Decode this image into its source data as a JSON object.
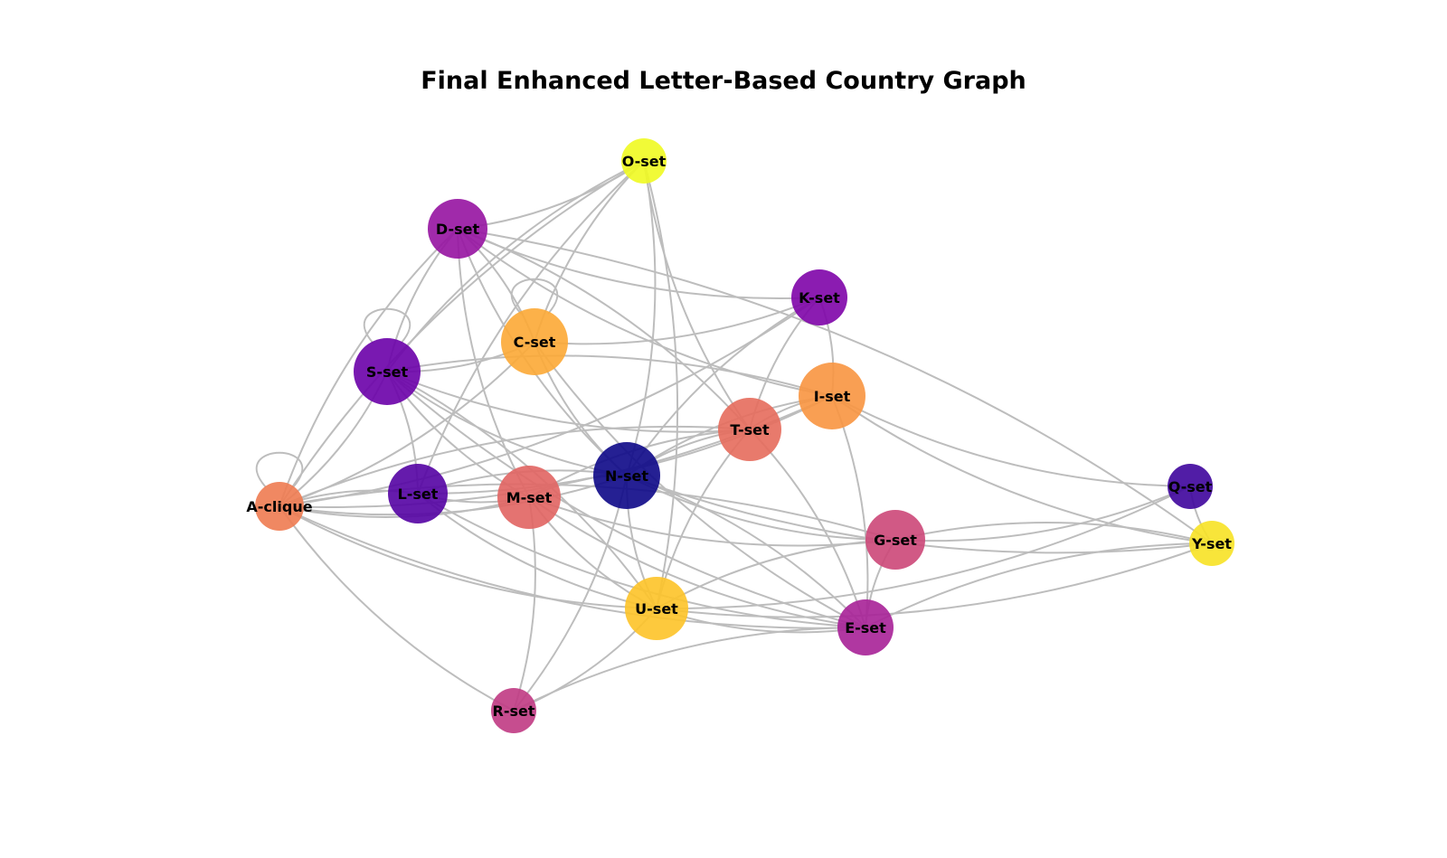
{
  "title": "Final Enhanced Letter-Based Country Graph",
  "nodes": [
    {
      "id": "A",
      "label": "A-clique",
      "color": "#ee7b51"
    },
    {
      "id": "C",
      "label": "C-set",
      "color": "#fca835"
    },
    {
      "id": "D",
      "label": "D-set",
      "color": "#9613a1"
    },
    {
      "id": "E",
      "label": "E-set",
      "color": "#a72197"
    },
    {
      "id": "G",
      "label": "G-set",
      "color": "#cc4778"
    },
    {
      "id": "I",
      "label": "I-set",
      "color": "#f89540"
    },
    {
      "id": "K",
      "label": "K-set",
      "color": "#7e03a8"
    },
    {
      "id": "L",
      "label": "L-set",
      "color": "#5402a3"
    },
    {
      "id": "M",
      "label": "M-set",
      "color": "#e16462"
    },
    {
      "id": "N",
      "label": "N-set",
      "color": "#0d0887"
    },
    {
      "id": "O",
      "label": "O-set",
      "color": "#f0f921"
    },
    {
      "id": "Q",
      "label": "Q-set",
      "color": "#3e049c"
    },
    {
      "id": "R",
      "label": "R-set",
      "color": "#c03a83"
    },
    {
      "id": "S",
      "label": "S-set",
      "color": "#6a00a8"
    },
    {
      "id": "T",
      "label": "T-set",
      "color": "#e66c5c"
    },
    {
      "id": "U",
      "label": "U-set",
      "color": "#fdc328"
    },
    {
      "id": "Y",
      "label": "Y-set",
      "color": "#f7e225"
    }
  ],
  "edges": [
    [
      "A",
      "A"
    ],
    [
      "C",
      "C"
    ],
    [
      "S",
      "S"
    ],
    [
      "A",
      "D"
    ],
    [
      "A",
      "S"
    ],
    [
      "A",
      "C"
    ],
    [
      "A",
      "L"
    ],
    [
      "A",
      "M"
    ],
    [
      "A",
      "N"
    ],
    [
      "A",
      "T"
    ],
    [
      "A",
      "I"
    ],
    [
      "A",
      "K"
    ],
    [
      "A",
      "O"
    ],
    [
      "A",
      "R"
    ],
    [
      "A",
      "U"
    ],
    [
      "A",
      "G"
    ],
    [
      "A",
      "E"
    ],
    [
      "D",
      "O"
    ],
    [
      "D",
      "C"
    ],
    [
      "D",
      "S"
    ],
    [
      "D",
      "N"
    ],
    [
      "D",
      "T"
    ],
    [
      "D",
      "I"
    ],
    [
      "D",
      "K"
    ],
    [
      "D",
      "Y"
    ],
    [
      "D",
      "M"
    ],
    [
      "O",
      "C"
    ],
    [
      "O",
      "N"
    ],
    [
      "O",
      "T"
    ],
    [
      "O",
      "S"
    ],
    [
      "O",
      "U"
    ],
    [
      "O",
      "L"
    ],
    [
      "C",
      "N"
    ],
    [
      "C",
      "S"
    ],
    [
      "C",
      "K"
    ],
    [
      "C",
      "E"
    ],
    [
      "S",
      "L"
    ],
    [
      "S",
      "M"
    ],
    [
      "S",
      "N"
    ],
    [
      "S",
      "U"
    ],
    [
      "S",
      "E"
    ],
    [
      "S",
      "T"
    ],
    [
      "S",
      "I"
    ],
    [
      "K",
      "N"
    ],
    [
      "K",
      "T"
    ],
    [
      "K",
      "I"
    ],
    [
      "I",
      "N"
    ],
    [
      "I",
      "T"
    ],
    [
      "I",
      "E"
    ],
    [
      "I",
      "Y"
    ],
    [
      "I",
      "Q"
    ],
    [
      "I",
      "L"
    ],
    [
      "T",
      "N"
    ],
    [
      "T",
      "U"
    ],
    [
      "T",
      "E"
    ],
    [
      "T",
      "M"
    ],
    [
      "L",
      "M"
    ],
    [
      "L",
      "N"
    ],
    [
      "L",
      "U"
    ],
    [
      "L",
      "E"
    ],
    [
      "M",
      "N"
    ],
    [
      "M",
      "U"
    ],
    [
      "M",
      "E"
    ],
    [
      "M",
      "R"
    ],
    [
      "M",
      "G"
    ],
    [
      "N",
      "U"
    ],
    [
      "N",
      "E"
    ],
    [
      "N",
      "G"
    ],
    [
      "N",
      "Y"
    ],
    [
      "N",
      "R"
    ],
    [
      "G",
      "U"
    ],
    [
      "G",
      "E"
    ],
    [
      "G",
      "Y"
    ],
    [
      "G",
      "Q"
    ],
    [
      "U",
      "E"
    ],
    [
      "U",
      "R"
    ],
    [
      "U",
      "Y"
    ],
    [
      "U",
      "Q"
    ],
    [
      "E",
      "Y"
    ],
    [
      "E",
      "R"
    ],
    [
      "Q",
      "Y"
    ]
  ]
}
